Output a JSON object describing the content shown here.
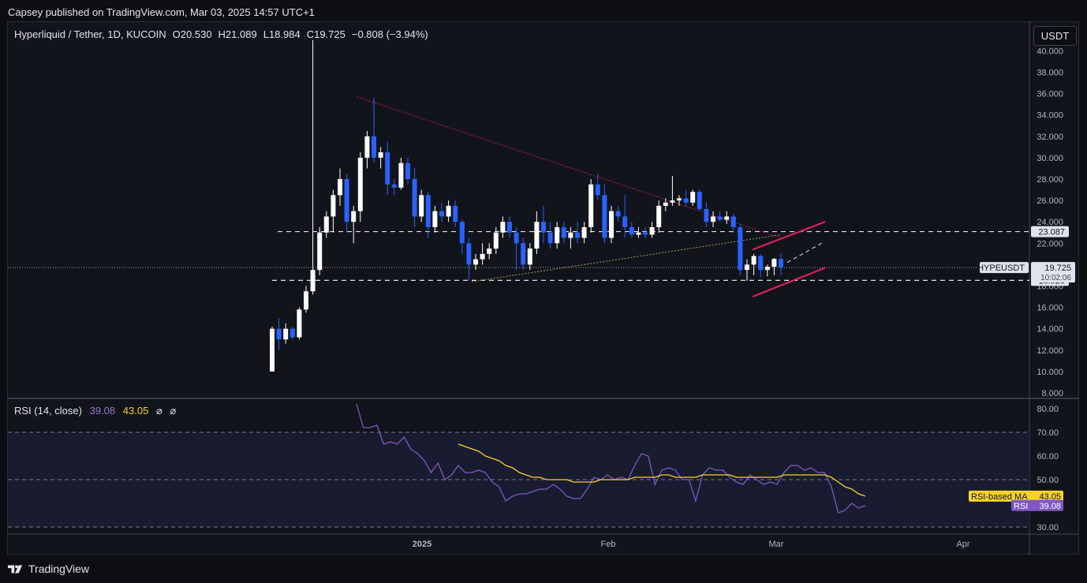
{
  "publisher": "Capsey published on TradingView.com, Mar 03, 2025 14:57 UTC+1",
  "header": {
    "symbol": "Hyperliquid / Tether, 1D, KUCOIN",
    "open": "O20.530",
    "high": "H21.089",
    "low": "L18.984",
    "close": "C19.725",
    "change": "−0.808 (−3.94%)"
  },
  "currency_button": "USDT",
  "rsi_header": {
    "label": "RSI (14, close)",
    "rsi": "39.08",
    "ma": "43.05",
    "icon1": "⌀",
    "icon2": "⌀"
  },
  "footer": {
    "brand": "TradingView"
  },
  "colors": {
    "up": "#ffffff",
    "down": "#2962ff",
    "rsi": "#7e57c2",
    "rsi_ma": "#f5d22b",
    "channel": "#e91e63",
    "background": "#12141b"
  },
  "chart_data": [
    {
      "type": "candlestick",
      "title": "Hyperliquid / Tether, 1D, KUCOIN",
      "ylim": [
        8,
        41
      ],
      "yticks": [
        "40.000",
        "38.000",
        "36.000",
        "34.000",
        "32.000",
        "30.000",
        "28.000",
        "26.000",
        "24.000",
        "22.000",
        "20.000",
        "18.000",
        "16.000",
        "14.000",
        "12.000",
        "10.000",
        "8.000"
      ],
      "xticks": [
        "2025",
        "Feb",
        "Mar",
        "Apr"
      ],
      "levels": [
        23.087,
        18.526
      ],
      "price_labels": {
        "symbol": "HYPEUSDT",
        "last": "19.725",
        "countdown": "10:02:06",
        "upper_level": "23.087",
        "lower_level": "18.526"
      },
      "candles": [
        [
          10.0,
          14.2,
          10.0,
          14.0
        ],
        [
          14.0,
          15.0,
          12.0,
          13.0
        ],
        [
          13.0,
          14.5,
          12.6,
          14.0
        ],
        [
          14.0,
          14.2,
          13.0,
          13.2
        ],
        [
          13.2,
          16.0,
          13.0,
          15.8
        ],
        [
          15.8,
          18.0,
          15.5,
          17.5
        ],
        [
          17.5,
          41.0,
          17.2,
          19.5
        ],
        [
          19.5,
          23.5,
          19.0,
          23.0
        ],
        [
          23.0,
          25.0,
          22.5,
          24.5
        ],
        [
          24.5,
          27.0,
          23.0,
          26.5
        ],
        [
          26.5,
          29.0,
          25.5,
          28.0
        ],
        [
          28.0,
          28.5,
          23.0,
          24.0
        ],
        [
          24.0,
          25.5,
          22.0,
          25.0
        ],
        [
          25.0,
          30.5,
          24.0,
          30.0
        ],
        [
          30.0,
          32.5,
          29.0,
          32.0
        ],
        [
          32.0,
          35.6,
          29.5,
          30.0
        ],
        [
          30.0,
          31.0,
          29.0,
          30.5
        ],
        [
          30.5,
          31.5,
          26.5,
          27.5
        ],
        [
          27.5,
          28.0,
          26.5,
          27.2
        ],
        [
          27.2,
          30.0,
          27.0,
          29.5
        ],
        [
          29.5,
          30.0,
          27.5,
          28.0
        ],
        [
          28.0,
          29.0,
          23.5,
          24.5
        ],
        [
          24.5,
          27.0,
          24.0,
          26.5
        ],
        [
          26.5,
          26.8,
          22.5,
          23.5
        ],
        [
          23.5,
          25.5,
          23.0,
          25.0
        ],
        [
          25.0,
          25.8,
          24.0,
          24.5
        ],
        [
          24.5,
          26.0,
          24.0,
          25.5
        ],
        [
          25.5,
          26.0,
          23.5,
          24.0
        ],
        [
          24.0,
          24.2,
          21.0,
          22.0
        ],
        [
          22.0,
          22.5,
          18.5,
          20.0
        ],
        [
          20.0,
          21.0,
          19.5,
          20.5
        ],
        [
          20.5,
          22.0,
          20.0,
          21.0
        ],
        [
          21.0,
          22.0,
          20.5,
          21.5
        ],
        [
          21.5,
          23.5,
          21.0,
          23.0
        ],
        [
          23.0,
          24.5,
          22.5,
          24.0
        ],
        [
          24.0,
          24.5,
          22.5,
          23.0
        ],
        [
          23.0,
          23.5,
          19.5,
          22.0
        ],
        [
          22.0,
          22.5,
          19.5,
          20.0
        ],
        [
          20.0,
          22.0,
          19.5,
          21.5
        ],
        [
          21.5,
          25.0,
          21.0,
          24.0
        ],
        [
          24.0,
          25.5,
          22.0,
          23.0
        ],
        [
          23.0,
          24.0,
          21.5,
          22.0
        ],
        [
          22.0,
          24.0,
          21.5,
          23.5
        ],
        [
          23.5,
          24.0,
          22.0,
          22.5
        ],
        [
          22.5,
          23.5,
          21.5,
          23.0
        ],
        [
          23.0,
          24.0,
          22.0,
          22.5
        ],
        [
          22.5,
          24.0,
          22.0,
          23.5
        ],
        [
          23.5,
          28.0,
          23.0,
          27.5
        ],
        [
          27.5,
          28.5,
          26.0,
          26.5
        ],
        [
          26.5,
          27.5,
          22.0,
          22.5
        ],
        [
          22.5,
          25.5,
          22.0,
          25.0
        ],
        [
          25.0,
          25.5,
          24.0,
          24.5
        ],
        [
          24.5,
          26.5,
          22.5,
          23.5
        ],
        [
          23.5,
          24.0,
          22.5,
          22.8
        ],
        [
          22.8,
          23.5,
          22.5,
          23.0
        ],
        [
          23.0,
          23.5,
          22.5,
          22.8
        ],
        [
          22.8,
          24.0,
          22.5,
          23.5
        ],
        [
          23.5,
          26.0,
          23.0,
          25.5
        ],
        [
          25.5,
          26.2,
          25.0,
          25.8
        ],
        [
          25.8,
          28.3,
          25.5,
          26.0
        ],
        [
          26.0,
          26.5,
          25.5,
          26.2
        ],
        [
          26.2,
          27.0,
          25.5,
          25.8
        ],
        [
          25.8,
          27.0,
          25.5,
          26.8
        ],
        [
          26.8,
          27.0,
          25.0,
          25.2
        ],
        [
          25.2,
          25.8,
          23.5,
          24.0
        ],
        [
          24.0,
          25.0,
          23.5,
          24.5
        ],
        [
          24.5,
          25.0,
          24.0,
          24.2
        ],
        [
          24.2,
          25.0,
          23.8,
          24.5
        ],
        [
          24.5,
          24.8,
          23.0,
          23.5
        ],
        [
          23.5,
          23.8,
          19.0,
          19.5
        ],
        [
          19.5,
          20.5,
          18.5,
          20.0
        ],
        [
          20.0,
          21.0,
          19.0,
          20.8
        ],
        [
          20.8,
          21.0,
          18.8,
          19.5
        ],
        [
          19.5,
          20.0,
          18.9,
          19.8
        ],
        [
          19.8,
          20.6,
          19.0,
          20.53
        ],
        [
          20.53,
          21.089,
          18.984,
          19.725
        ]
      ]
    },
    {
      "type": "line",
      "title": "RSI (14, close)",
      "ylim": [
        28,
        83
      ],
      "yticks": [
        "80.00",
        "70.00",
        "60.00",
        "50.00",
        "40.00",
        "30.00"
      ],
      "bands": [
        70,
        30
      ],
      "midline": 50,
      "series": [
        {
          "name": "RSI",
          "last_label": "39.08",
          "values": [
            82,
            72,
            72,
            73,
            65,
            66,
            65,
            68,
            63,
            61,
            58,
            53,
            57,
            50,
            52,
            56,
            53,
            53,
            54,
            53,
            49,
            47,
            41,
            43,
            44,
            44,
            45,
            46,
            46,
            48,
            46,
            43,
            42,
            42,
            46,
            51,
            50,
            52,
            50,
            51,
            50,
            56,
            61,
            60,
            48,
            54,
            55,
            54,
            50,
            50,
            41,
            52,
            55,
            54,
            54,
            51,
            49,
            48,
            52,
            50,
            48,
            49,
            48,
            53,
            56,
            56,
            54,
            55,
            53,
            53,
            47,
            36,
            37,
            40,
            38,
            39.08
          ]
        },
        {
          "name": "RSI-based MA",
          "last_label": "43.05",
          "values": [
            null,
            null,
            null,
            null,
            null,
            null,
            null,
            null,
            null,
            null,
            null,
            null,
            null,
            null,
            null,
            65,
            64,
            63,
            62,
            60,
            59,
            58,
            56,
            55,
            53,
            52,
            51,
            51,
            50,
            50,
            50,
            50,
            49,
            49,
            49,
            49,
            50,
            50,
            50,
            50,
            50,
            51,
            51,
            51,
            51,
            52,
            52,
            51,
            51,
            51,
            51,
            52,
            52,
            52,
            52,
            52,
            51,
            51,
            51,
            51,
            51,
            51,
            51,
            52,
            52,
            52,
            52,
            52,
            52,
            52,
            51,
            49,
            47,
            46,
            44,
            43.05
          ]
        }
      ]
    }
  ]
}
